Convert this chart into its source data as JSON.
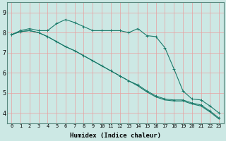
{
  "title": "",
  "xlabel": "Humidex (Indice chaleur)",
  "ylabel": "",
  "background_color": "#cce8e4",
  "grid_color": "#e8a0a0",
  "line_color": "#1a7a6a",
  "x_ticks": [
    0,
    1,
    2,
    3,
    4,
    5,
    6,
    7,
    8,
    9,
    10,
    11,
    12,
    13,
    14,
    15,
    16,
    17,
    18,
    19,
    20,
    21,
    22,
    23
  ],
  "y_ticks": [
    4,
    5,
    6,
    7,
    8,
    9
  ],
  "xlim": [
    -0.5,
    23.5
  ],
  "ylim": [
    3.5,
    9.5
  ],
  "series1_x": [
    0,
    1,
    2,
    3,
    4,
    5,
    6,
    7,
    8,
    9,
    10,
    11,
    12,
    13,
    14,
    15,
    16,
    17,
    18,
    19,
    20,
    21,
    22,
    23
  ],
  "series1_y": [
    7.9,
    8.1,
    8.2,
    8.1,
    8.1,
    8.45,
    8.65,
    8.5,
    8.3,
    8.1,
    8.1,
    8.1,
    8.1,
    8.0,
    8.2,
    7.85,
    7.8,
    7.25,
    6.2,
    5.1,
    4.7,
    4.65,
    4.35,
    4.0
  ],
  "series2_x": [
    0,
    1,
    2,
    3,
    4,
    5,
    6,
    7,
    8,
    9,
    10,
    11,
    12,
    13,
    14,
    15,
    16,
    17,
    18,
    19,
    20,
    21,
    22,
    23
  ],
  "series2_y": [
    7.9,
    8.05,
    8.1,
    8.0,
    7.8,
    7.55,
    7.3,
    7.1,
    6.85,
    6.6,
    6.35,
    6.1,
    5.85,
    5.6,
    5.4,
    5.1,
    4.85,
    4.7,
    4.65,
    4.65,
    4.5,
    4.4,
    4.1,
    3.75
  ],
  "series3_x": [
    0,
    1,
    2,
    3,
    4,
    5,
    6,
    7,
    8,
    9,
    10,
    11,
    12,
    13,
    14,
    15,
    16,
    17,
    18,
    19,
    20,
    21,
    22,
    23
  ],
  "series3_y": [
    7.9,
    8.05,
    8.1,
    8.0,
    7.8,
    7.55,
    7.3,
    7.1,
    6.85,
    6.6,
    6.35,
    6.1,
    5.85,
    5.6,
    5.35,
    5.05,
    4.8,
    4.65,
    4.6,
    4.6,
    4.45,
    4.35,
    4.05,
    3.7
  ],
  "tick_fontsize": 5.0,
  "xlabel_fontsize": 6.5,
  "ylabel_fontsize": 6.0
}
